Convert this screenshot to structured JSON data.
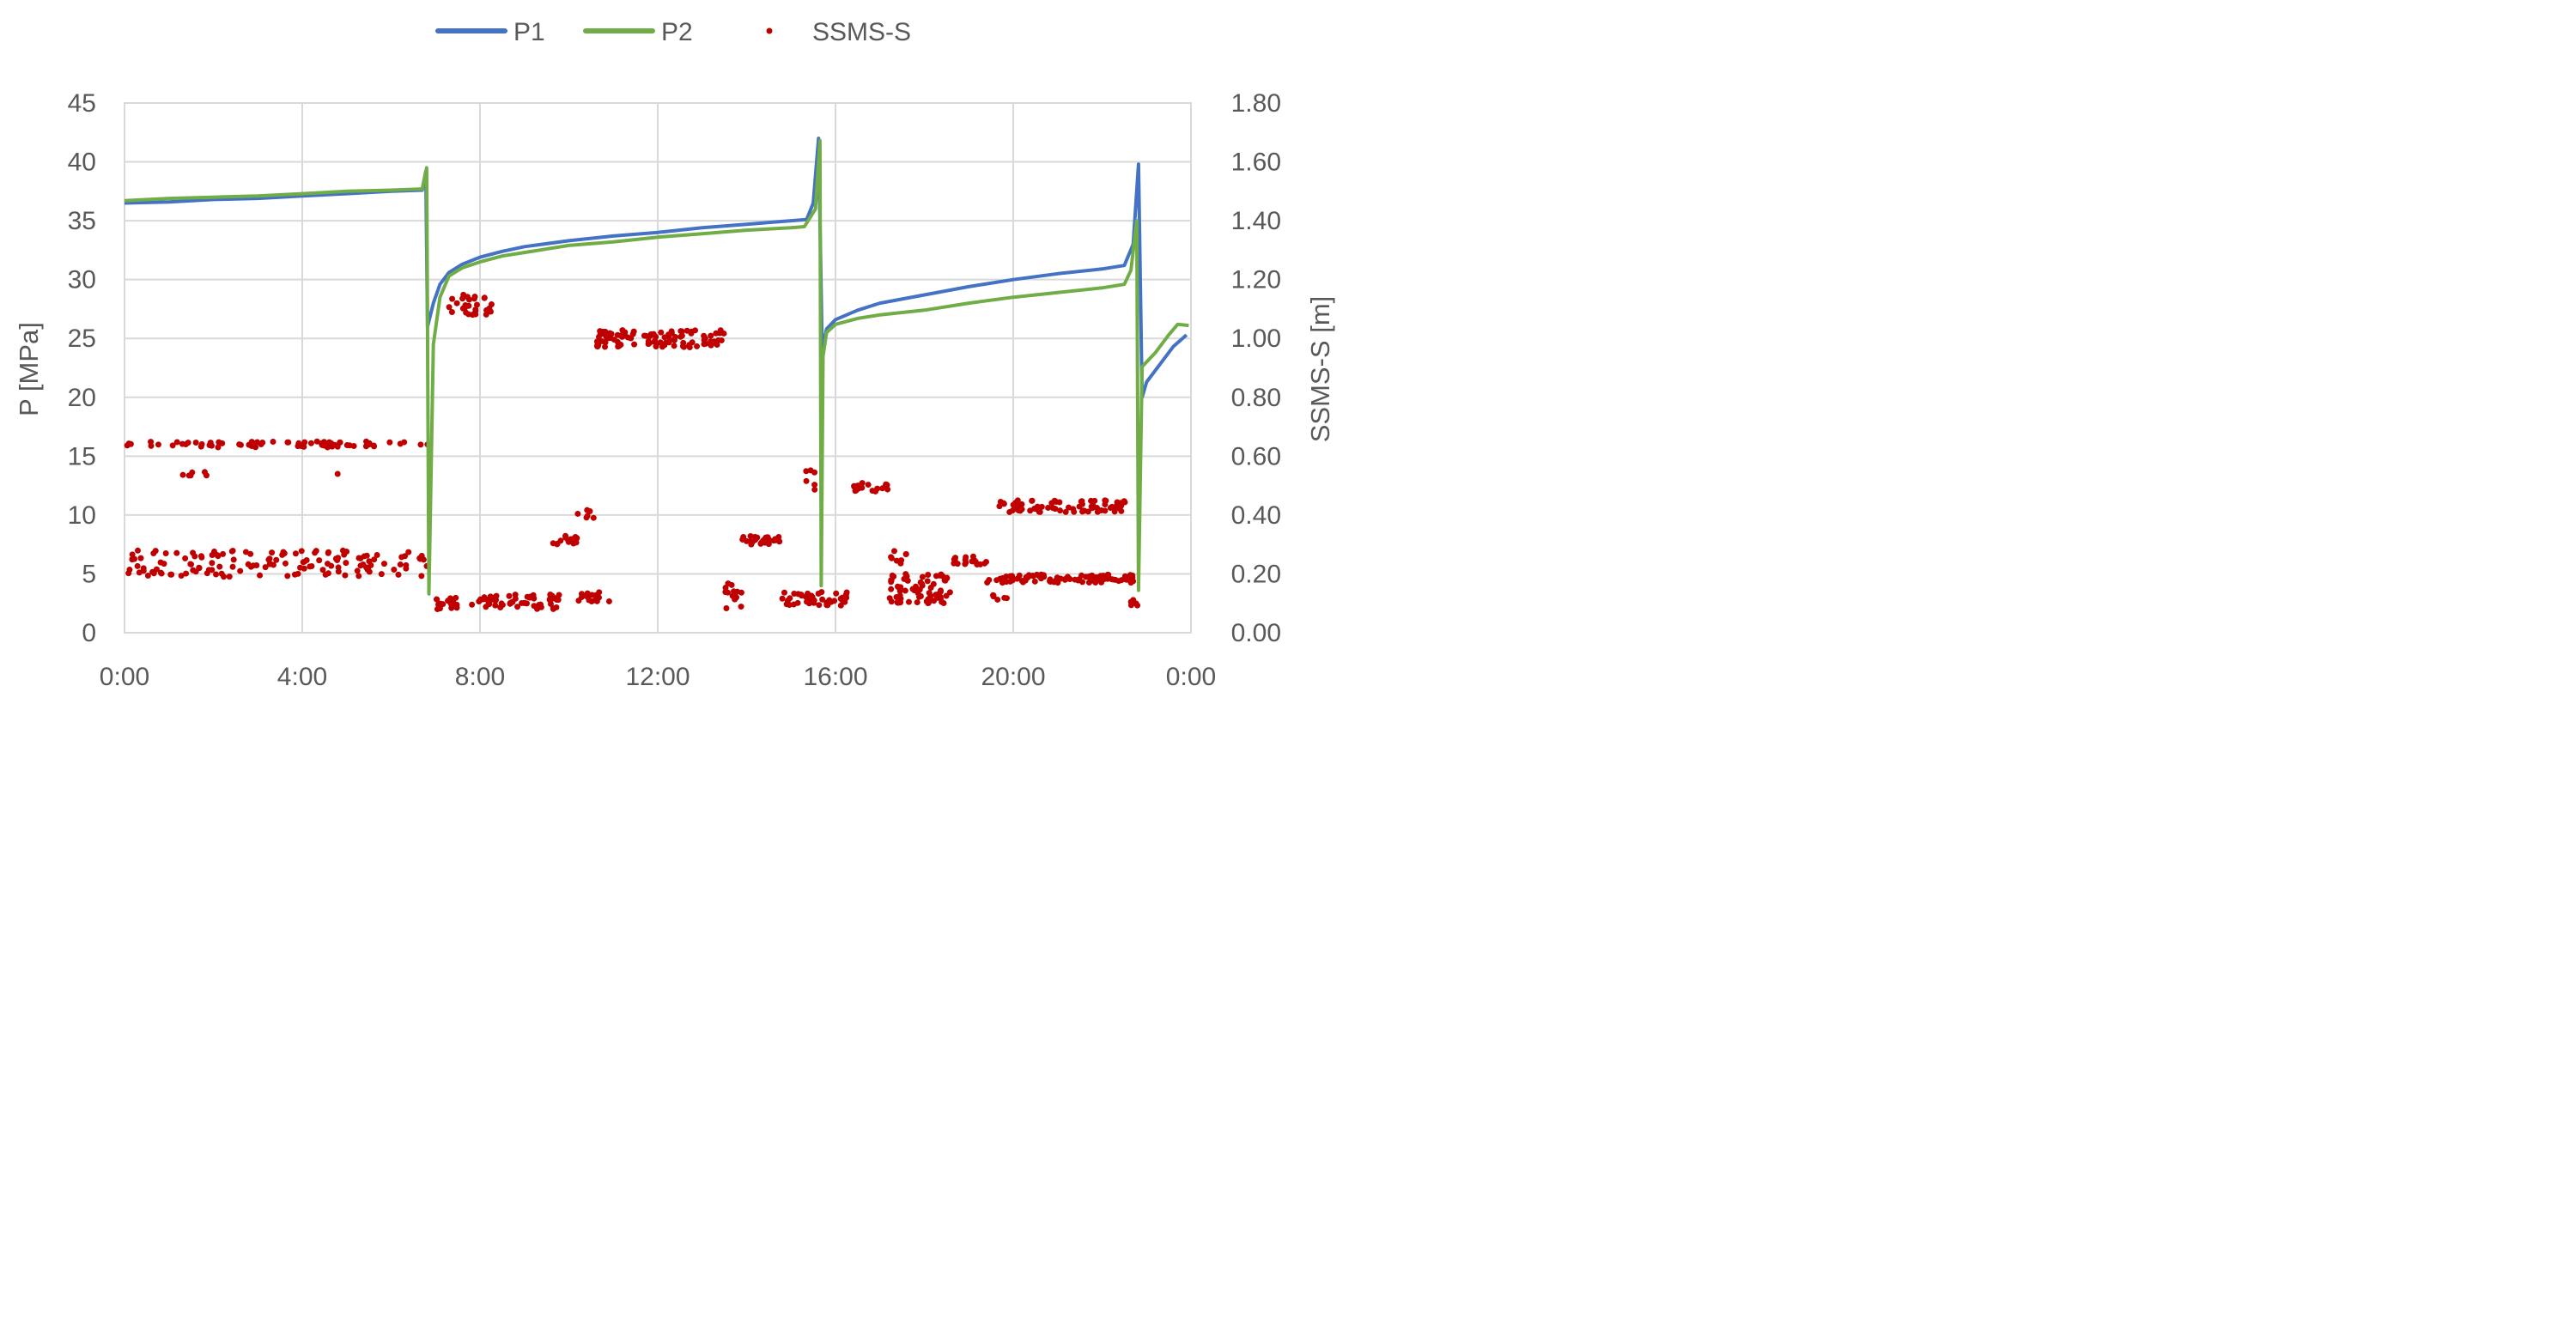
{
  "chart_data": {
    "type": "line",
    "title": "",
    "xlabel": "",
    "ylabel": "P [MPa]",
    "y2label": "SSMS-S [m]",
    "x_unit": "hours",
    "x_ticks": [
      "0:00",
      "4:00",
      "8:00",
      "12:00",
      "16:00",
      "20:00",
      "0:00"
    ],
    "ylim": [
      0,
      45
    ],
    "y_ticks": [
      "0",
      "5",
      "10",
      "15",
      "20",
      "25",
      "30",
      "35",
      "40",
      "45"
    ],
    "y2lim": [
      0,
      1.8
    ],
    "y2_ticks": [
      "0.00",
      "0.20",
      "0.40",
      "0.60",
      "0.80",
      "1.00",
      "1.20",
      "1.40",
      "1.60",
      "1.80"
    ],
    "grid": true,
    "legend_position": "top",
    "series": [
      {
        "name": "P1",
        "type": "line",
        "axis": "left",
        "color": "#4472C4",
        "points": [
          [
            0.0,
            36.5
          ],
          [
            1.0,
            36.6
          ],
          [
            2.0,
            36.8
          ],
          [
            3.0,
            36.9
          ],
          [
            4.0,
            37.1
          ],
          [
            5.0,
            37.3
          ],
          [
            6.0,
            37.5
          ],
          [
            6.7,
            37.6
          ],
          [
            6.78,
            39.2
          ],
          [
            6.82,
            26.0
          ],
          [
            6.95,
            28.0
          ],
          [
            7.1,
            29.6
          ],
          [
            7.3,
            30.6
          ],
          [
            7.6,
            31.3
          ],
          [
            8.0,
            31.9
          ],
          [
            8.5,
            32.4
          ],
          [
            9.0,
            32.8
          ],
          [
            10.0,
            33.3
          ],
          [
            11.0,
            33.7
          ],
          [
            12.0,
            34.0
          ],
          [
            13.0,
            34.4
          ],
          [
            14.0,
            34.7
          ],
          [
            15.0,
            35.0
          ],
          [
            15.35,
            35.1
          ],
          [
            15.5,
            36.5
          ],
          [
            15.62,
            42.0
          ],
          [
            15.7,
            24.0
          ],
          [
            15.8,
            25.8
          ],
          [
            16.0,
            26.6
          ],
          [
            16.5,
            27.4
          ],
          [
            17.0,
            28.0
          ],
          [
            18.0,
            28.7
          ],
          [
            19.0,
            29.4
          ],
          [
            20.0,
            30.0
          ],
          [
            21.0,
            30.5
          ],
          [
            22.0,
            30.9
          ],
          [
            22.5,
            31.2
          ],
          [
            22.7,
            33.0
          ],
          [
            22.82,
            39.8
          ],
          [
            22.9,
            20.0
          ],
          [
            23.0,
            21.3
          ],
          [
            23.3,
            22.8
          ],
          [
            23.6,
            24.3
          ],
          [
            23.9,
            25.3
          ]
        ]
      },
      {
        "name": "P2",
        "type": "line",
        "axis": "left",
        "color": "#70AD47",
        "points": [
          [
            0.0,
            36.7
          ],
          [
            1.0,
            36.9
          ],
          [
            2.0,
            37.0
          ],
          [
            3.0,
            37.1
          ],
          [
            4.0,
            37.3
          ],
          [
            5.0,
            37.5
          ],
          [
            6.0,
            37.6
          ],
          [
            6.7,
            37.7
          ],
          [
            6.8,
            39.5
          ],
          [
            6.85,
            3.3
          ],
          [
            6.95,
            24.5
          ],
          [
            7.1,
            28.5
          ],
          [
            7.3,
            30.3
          ],
          [
            7.6,
            31.0
          ],
          [
            8.0,
            31.5
          ],
          [
            8.5,
            32.0
          ],
          [
            9.0,
            32.3
          ],
          [
            10.0,
            32.9
          ],
          [
            11.0,
            33.2
          ],
          [
            12.0,
            33.6
          ],
          [
            13.0,
            33.9
          ],
          [
            14.0,
            34.2
          ],
          [
            15.0,
            34.4
          ],
          [
            15.3,
            34.5
          ],
          [
            15.55,
            36.0
          ],
          [
            15.65,
            41.8
          ],
          [
            15.68,
            4.0
          ],
          [
            15.72,
            23.5
          ],
          [
            15.8,
            25.5
          ],
          [
            16.0,
            26.2
          ],
          [
            16.5,
            26.7
          ],
          [
            17.0,
            27.0
          ],
          [
            18.0,
            27.4
          ],
          [
            19.0,
            28.0
          ],
          [
            20.0,
            28.5
          ],
          [
            21.0,
            28.9
          ],
          [
            22.0,
            29.3
          ],
          [
            22.5,
            29.6
          ],
          [
            22.65,
            30.8
          ],
          [
            22.78,
            35.0
          ],
          [
            22.82,
            3.6
          ],
          [
            22.9,
            22.6
          ],
          [
            23.2,
            23.8
          ],
          [
            23.5,
            25.3
          ],
          [
            23.7,
            26.2
          ],
          [
            23.95,
            26.1
          ]
        ]
      },
      {
        "name": "SSMS-S",
        "type": "scatter",
        "axis": "right",
        "color": "#C00000",
        "clusters": [
          {
            "x": [
              0.0,
              6.85
            ],
            "y": [
              0.63,
              0.65
            ],
            "n": 70
          },
          {
            "x": [
              0.0,
              6.85
            ],
            "y": [
              0.19,
              0.28
            ],
            "n": 140
          },
          {
            "x": [
              1.2,
              2.0
            ],
            "y": [
              0.52,
              0.55
            ],
            "n": 6
          },
          {
            "x": [
              4.7,
              4.8
            ],
            "y": [
              0.53,
              0.55
            ],
            "n": 1
          },
          {
            "x": [
              6.95,
              7.5
            ],
            "y": [
              0.08,
              0.12
            ],
            "n": 20
          },
          {
            "x": [
              7.3,
              8.3
            ],
            "y": [
              1.08,
              1.15
            ],
            "n": 30
          },
          {
            "x": [
              7.8,
              9.8
            ],
            "y": [
              0.08,
              0.13
            ],
            "n": 60
          },
          {
            "x": [
              9.6,
              10.2
            ],
            "y": [
              0.3,
              0.33
            ],
            "n": 20
          },
          {
            "x": [
              10.2,
              10.6
            ],
            "y": [
              0.39,
              0.42
            ],
            "n": 6
          },
          {
            "x": [
              10.2,
              11.0
            ],
            "y": [
              0.1,
              0.14
            ],
            "n": 15
          },
          {
            "x": [
              10.6,
              13.5
            ],
            "y": [
              0.97,
              1.03
            ],
            "n": 100
          },
          {
            "x": [
              13.5,
              13.9
            ],
            "y": [
              0.08,
              0.17
            ],
            "n": 15
          },
          {
            "x": [
              13.9,
              14.8
            ],
            "y": [
              0.3,
              0.33
            ],
            "n": 30
          },
          {
            "x": [
              14.8,
              16.3
            ],
            "y": [
              0.09,
              0.14
            ],
            "n": 45
          },
          {
            "x": [
              15.3,
              15.55
            ],
            "y": [
              0.48,
              0.56
            ],
            "n": 6
          },
          {
            "x": [
              16.4,
              17.2
            ],
            "y": [
              0.48,
              0.51
            ],
            "n": 20
          },
          {
            "x": [
              17.2,
              18.6
            ],
            "y": [
              0.1,
              0.2
            ],
            "n": 70
          },
          {
            "x": [
              17.2,
              17.6
            ],
            "y": [
              0.23,
              0.28
            ],
            "n": 8
          },
          {
            "x": [
              18.6,
              19.4
            ],
            "y": [
              0.23,
              0.26
            ],
            "n": 18
          },
          {
            "x": [
              19.4,
              22.7
            ],
            "y": [
              0.17,
              0.2
            ],
            "n": 90
          },
          {
            "x": [
              19.5,
              19.9
            ],
            "y": [
              0.11,
              0.13
            ],
            "n": 6
          },
          {
            "x": [
              19.6,
              22.6
            ],
            "y": [
              0.41,
              0.45
            ],
            "n": 70
          },
          {
            "x": [
              22.6,
              22.8
            ],
            "y": [
              0.09,
              0.12
            ],
            "n": 6
          }
        ]
      }
    ]
  }
}
